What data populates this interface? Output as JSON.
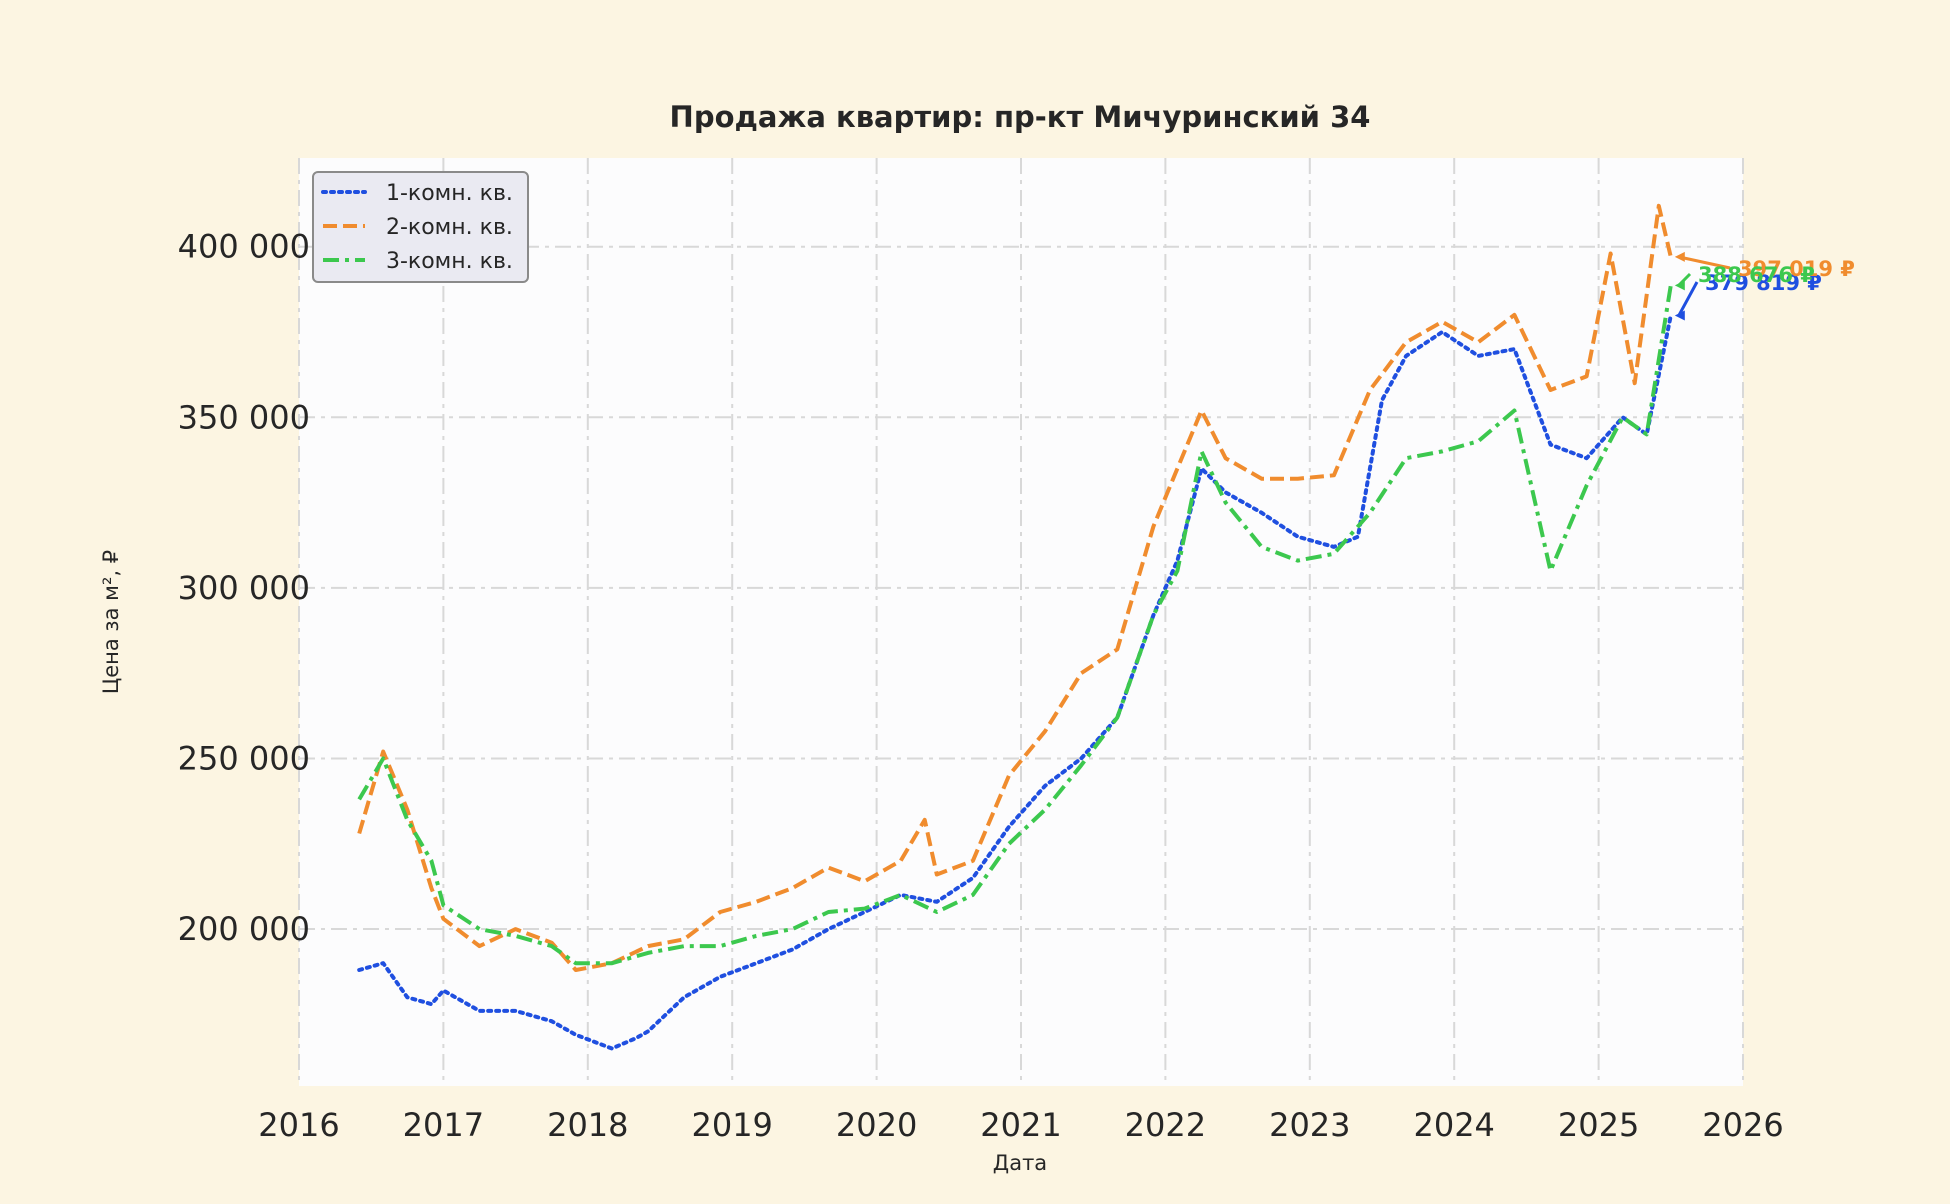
{
  "chart_data": {
    "type": "line",
    "title": "Продажа квартир: пр-кт Мичуринский 34",
    "xlabel": "Дата",
    "ylabel": "Цена за м², ₽",
    "x_ticks": [
      "2016",
      "2017",
      "2018",
      "2019",
      "2020",
      "2021",
      "2022",
      "2023",
      "2024",
      "2025",
      "2026"
    ],
    "y_ticks": [
      200000,
      250000,
      300000,
      350000,
      400000
    ],
    "y_tick_labels": [
      "200 000",
      "250 000",
      "300 000",
      "350 000",
      "400 000"
    ],
    "xlim": [
      "2016-01-01",
      "2026-01-01"
    ],
    "ylim": [
      154000,
      426000
    ],
    "grid": true,
    "legend_position": "top-left",
    "colors": {
      "background": "#fcf5e2",
      "plot_area": "#fcfcfd",
      "grid": "#d8d8d8"
    },
    "series": [
      {
        "name": "1-комн. кв.",
        "color": "#1f4fe0",
        "line_style": "dotted",
        "final_label": "379 819 ₽",
        "points": [
          [
            "2016-06",
            188000
          ],
          [
            "2016-08",
            190000
          ],
          [
            "2016-10",
            180000
          ],
          [
            "2016-12",
            178000
          ],
          [
            "2017-01",
            182000
          ],
          [
            "2017-04",
            176000
          ],
          [
            "2017-07",
            176000
          ],
          [
            "2017-10",
            173000
          ],
          [
            "2017-12",
            169000
          ],
          [
            "2018-03",
            165000
          ],
          [
            "2018-05",
            168000
          ],
          [
            "2018-06",
            170000
          ],
          [
            "2018-09",
            180000
          ],
          [
            "2018-12",
            186000
          ],
          [
            "2019-03",
            190000
          ],
          [
            "2019-06",
            194000
          ],
          [
            "2019-09",
            200000
          ],
          [
            "2019-12",
            205000
          ],
          [
            "2020-03",
            210000
          ],
          [
            "2020-06",
            208000
          ],
          [
            "2020-09",
            215000
          ],
          [
            "2020-12",
            230000
          ],
          [
            "2021-03",
            242000
          ],
          [
            "2021-06",
            250000
          ],
          [
            "2021-09",
            262000
          ],
          [
            "2021-12",
            292000
          ],
          [
            "2022-02",
            308000
          ],
          [
            "2022-04",
            335000
          ],
          [
            "2022-06",
            328000
          ],
          [
            "2022-09",
            322000
          ],
          [
            "2022-12",
            315000
          ],
          [
            "2023-03",
            312000
          ],
          [
            "2023-05",
            315000
          ],
          [
            "2023-07",
            355000
          ],
          [
            "2023-09",
            368000
          ],
          [
            "2023-12",
            375000
          ],
          [
            "2024-03",
            368000
          ],
          [
            "2024-06",
            370000
          ],
          [
            "2024-09",
            342000
          ],
          [
            "2024-12",
            338000
          ],
          [
            "2025-03",
            350000
          ],
          [
            "2025-05",
            345000
          ],
          [
            "2025-07",
            379819
          ]
        ]
      },
      {
        "name": "2-комн. кв.",
        "color": "#f08c2e",
        "line_style": "dashed",
        "final_label": "397 019 ₽",
        "points": [
          [
            "2016-06",
            228000
          ],
          [
            "2016-08",
            252000
          ],
          [
            "2016-10",
            235000
          ],
          [
            "2016-12",
            212000
          ],
          [
            "2017-01",
            203000
          ],
          [
            "2017-04",
            195000
          ],
          [
            "2017-07",
            200000
          ],
          [
            "2017-10",
            196000
          ],
          [
            "2017-12",
            188000
          ],
          [
            "2018-03",
            190000
          ],
          [
            "2018-06",
            195000
          ],
          [
            "2018-09",
            197000
          ],
          [
            "2018-12",
            205000
          ],
          [
            "2019-03",
            208000
          ],
          [
            "2019-06",
            212000
          ],
          [
            "2019-09",
            218000
          ],
          [
            "2019-12",
            214000
          ],
          [
            "2020-03",
            220000
          ],
          [
            "2020-05",
            232000
          ],
          [
            "2020-06",
            216000
          ],
          [
            "2020-09",
            220000
          ],
          [
            "2020-12",
            245000
          ],
          [
            "2021-03",
            258000
          ],
          [
            "2021-06",
            275000
          ],
          [
            "2021-09",
            282000
          ],
          [
            "2021-12",
            318000
          ],
          [
            "2022-02",
            335000
          ],
          [
            "2022-04",
            352000
          ],
          [
            "2022-06",
            338000
          ],
          [
            "2022-09",
            332000
          ],
          [
            "2022-12",
            332000
          ],
          [
            "2023-03",
            333000
          ],
          [
            "2023-06",
            358000
          ],
          [
            "2023-09",
            372000
          ],
          [
            "2023-12",
            378000
          ],
          [
            "2024-03",
            372000
          ],
          [
            "2024-06",
            380000
          ],
          [
            "2024-09",
            358000
          ],
          [
            "2024-12",
            362000
          ],
          [
            "2025-02",
            398000
          ],
          [
            "2025-04",
            360000
          ],
          [
            "2025-06",
            412000
          ],
          [
            "2025-07",
            397019
          ]
        ]
      },
      {
        "name": "3-комн. кв.",
        "color": "#3cc84e",
        "line_style": "dashdot",
        "final_label": "388 676 ₽",
        "points": [
          [
            "2016-06",
            238000
          ],
          [
            "2016-08",
            250000
          ],
          [
            "2016-10",
            232000
          ],
          [
            "2016-12",
            220000
          ],
          [
            "2017-01",
            207000
          ],
          [
            "2017-04",
            200000
          ],
          [
            "2017-07",
            198000
          ],
          [
            "2017-10",
            195000
          ],
          [
            "2017-12",
            190000
          ],
          [
            "2018-03",
            190000
          ],
          [
            "2018-06",
            193000
          ],
          [
            "2018-09",
            195000
          ],
          [
            "2018-12",
            195000
          ],
          [
            "2019-03",
            198000
          ],
          [
            "2019-06",
            200000
          ],
          [
            "2019-09",
            205000
          ],
          [
            "2019-12",
            206000
          ],
          [
            "2020-03",
            210000
          ],
          [
            "2020-06",
            205000
          ],
          [
            "2020-09",
            210000
          ],
          [
            "2020-12",
            225000
          ],
          [
            "2021-03",
            235000
          ],
          [
            "2021-06",
            248000
          ],
          [
            "2021-09",
            262000
          ],
          [
            "2021-12",
            292000
          ],
          [
            "2022-02",
            305000
          ],
          [
            "2022-04",
            340000
          ],
          [
            "2022-06",
            325000
          ],
          [
            "2022-09",
            312000
          ],
          [
            "2022-12",
            308000
          ],
          [
            "2023-03",
            310000
          ],
          [
            "2023-06",
            322000
          ],
          [
            "2023-09",
            338000
          ],
          [
            "2023-12",
            340000
          ],
          [
            "2024-03",
            343000
          ],
          [
            "2024-06",
            352000
          ],
          [
            "2024-09",
            305000
          ],
          [
            "2024-12",
            330000
          ],
          [
            "2025-03",
            350000
          ],
          [
            "2025-05",
            345000
          ],
          [
            "2025-07",
            388676
          ]
        ]
      }
    ]
  }
}
